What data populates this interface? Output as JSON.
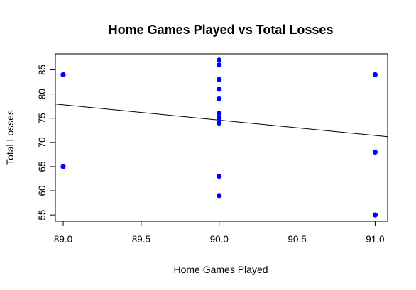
{
  "chart_data": {
    "type": "scatter",
    "title": "Home Games Played vs Total Losses",
    "xlabel": "Home Games Played",
    "ylabel": "Total Losses",
    "xlim": [
      88.95,
      91.08
    ],
    "ylim": [
      53.7,
      88.3
    ],
    "x_ticks": [
      89.0,
      89.5,
      90.0,
      90.5,
      91.0
    ],
    "x_tick_labels": [
      "89.0",
      "89.5",
      "90.0",
      "90.5",
      "91.0"
    ],
    "y_ticks": [
      55,
      60,
      65,
      70,
      75,
      80,
      85
    ],
    "y_tick_labels": [
      "55",
      "60",
      "65",
      "70",
      "75",
      "80",
      "85"
    ],
    "point_color": "#0000ff",
    "line_color": "#000000",
    "points": [
      {
        "x": 89,
        "y": 84
      },
      {
        "x": 89,
        "y": 65
      },
      {
        "x": 90,
        "y": 87
      },
      {
        "x": 90,
        "y": 86
      },
      {
        "x": 90,
        "y": 83
      },
      {
        "x": 90,
        "y": 81
      },
      {
        "x": 90,
        "y": 79
      },
      {
        "x": 90,
        "y": 76
      },
      {
        "x": 90,
        "y": 75
      },
      {
        "x": 90,
        "y": 74
      },
      {
        "x": 90,
        "y": 63
      },
      {
        "x": 90,
        "y": 59
      },
      {
        "x": 91,
        "y": 84
      },
      {
        "x": 91,
        "y": 68
      },
      {
        "x": 91,
        "y": 55
      }
    ],
    "regression_line": {
      "intercept": 359.61,
      "slope": -3.1667
    }
  }
}
